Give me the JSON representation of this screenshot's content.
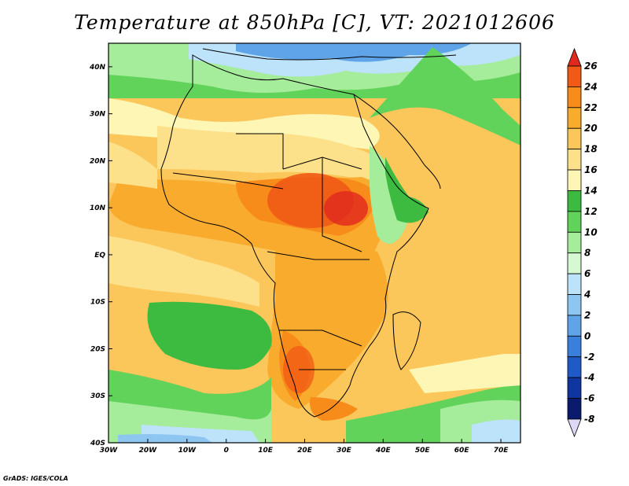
{
  "title": "Temperature at 850hPa [C], VT: 2021012606",
  "credit": "GrADS: IGES/COLA",
  "map": {
    "lon_range": [
      -30,
      75
    ],
    "lat_range": [
      -40,
      45
    ],
    "x_ticks": [
      {
        "value": -30,
        "label": "30W"
      },
      {
        "value": -20,
        "label": "20W"
      },
      {
        "value": -10,
        "label": "10W"
      },
      {
        "value": 0,
        "label": "0"
      },
      {
        "value": 10,
        "label": "10E"
      },
      {
        "value": 20,
        "label": "20E"
      },
      {
        "value": 30,
        "label": "30E"
      },
      {
        "value": 40,
        "label": "40E"
      },
      {
        "value": 50,
        "label": "50E"
      },
      {
        "value": 60,
        "label": "60E"
      },
      {
        "value": 70,
        "label": "70E"
      }
    ],
    "y_ticks": [
      {
        "value": 40,
        "label": "40N"
      },
      {
        "value": 30,
        "label": "30N"
      },
      {
        "value": 20,
        "label": "20N"
      },
      {
        "value": 10,
        "label": "10N"
      },
      {
        "value": 0,
        "label": "EQ"
      },
      {
        "value": -10,
        "label": "10S"
      },
      {
        "value": -20,
        "label": "20S"
      },
      {
        "value": -30,
        "label": "30S"
      },
      {
        "value": -40,
        "label": "40S"
      }
    ]
  },
  "colorbar": {
    "levels": [
      "26",
      "24",
      "22",
      "20",
      "18",
      "16",
      "14",
      "12",
      "10",
      "8",
      "6",
      "4",
      "2",
      "0",
      "-2",
      "-4",
      "-6",
      "-8"
    ],
    "colors": [
      "#e1281e",
      "#f05a16",
      "#f78c1a",
      "#f9ab2d",
      "#fbc65a",
      "#fde08a",
      "#fdf6b4",
      "#3cbb40",
      "#62d35a",
      "#a5ec9b",
      "#d6f8d2",
      "#bde3fa",
      "#8ec6f2",
      "#5fa4e8",
      "#3a7fdc",
      "#1f5bc6",
      "#0f36a0",
      "#0a1a6e",
      "#ddd8f6"
    ]
  }
}
